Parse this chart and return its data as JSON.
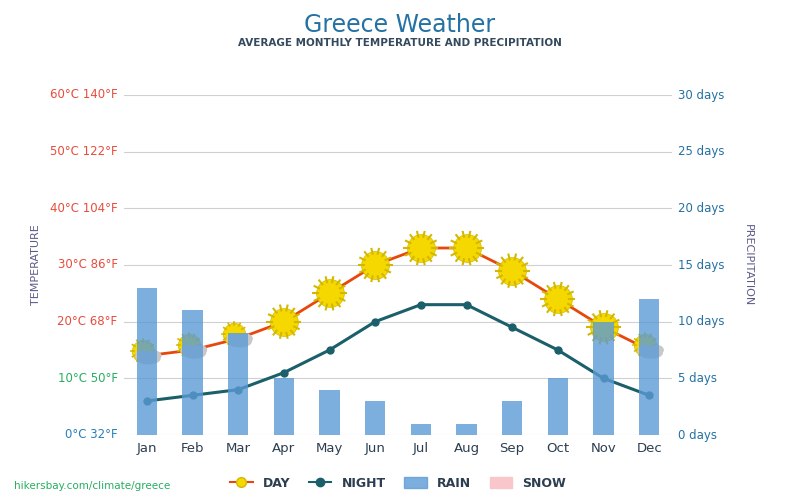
{
  "title": "Greece Weather",
  "subtitle": "AVERAGE MONTHLY TEMPERATURE AND PRECIPITATION",
  "months": [
    "Jan",
    "Feb",
    "Mar",
    "Apr",
    "May",
    "Jun",
    "Jul",
    "Aug",
    "Sep",
    "Oct",
    "Nov",
    "Dec"
  ],
  "day_temp": [
    14,
    15,
    17,
    20,
    25,
    30,
    33,
    33,
    29,
    24,
    19,
    15
  ],
  "night_temp": [
    6,
    7,
    8,
    11,
    15,
    20,
    23,
    23,
    19,
    15,
    10,
    7
  ],
  "rain_days": [
    13,
    11,
    9,
    5,
    4,
    3,
    1,
    1,
    3,
    5,
    10,
    12
  ],
  "snow_days": [
    0,
    0,
    0,
    0,
    0,
    0,
    0,
    0,
    0,
    0,
    0,
    0
  ],
  "temp_min_c": 0,
  "temp_max_c": 60,
  "precip_min": 0,
  "precip_max": 30,
  "day_color": "#e8470a",
  "night_color": "#1a5f6a",
  "bar_color": "#5b9bd5",
  "title_color": "#2471a3",
  "subtitle_color": "#34495e",
  "right_label_color": "#2471a3",
  "temp_label_color": "#5a5a8a",
  "precip_label_color": "#5a5a8a",
  "background_color": "#ffffff",
  "grid_color": "#d0d0d0",
  "sun_color": "#f5d800",
  "sun_ray_color": "#d4b800",
  "cloud_color": "#c8c8c8",
  "watermark": "hikersbay.com/climate/greece",
  "left_labels": [
    [
      0,
      "0°C 32°F",
      "#2980b9"
    ],
    [
      10,
      "10°C 50°F",
      "#27ae60"
    ],
    [
      20,
      "20°C 68°F",
      "#e74c3c"
    ],
    [
      30,
      "30°C 86°F",
      "#e74c3c"
    ],
    [
      40,
      "40°C 104°F",
      "#e74c3c"
    ],
    [
      50,
      "50°C 122°F",
      "#e74c3c"
    ],
    [
      60,
      "60°C 140°F",
      "#e74c3c"
    ]
  ],
  "cloud_months": [
    0,
    1,
    2,
    11
  ],
  "sun_months": [
    3,
    4,
    5,
    6,
    7,
    8,
    9,
    10
  ]
}
